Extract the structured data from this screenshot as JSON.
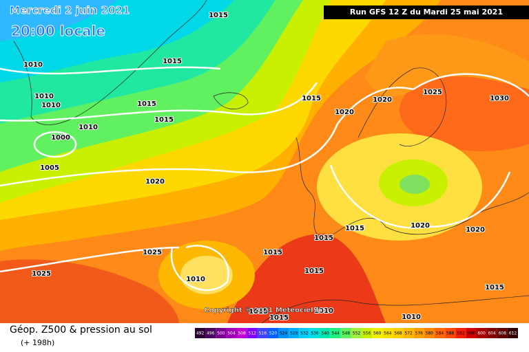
{
  "header": {
    "date": "Mercredi 2 juin 2021",
    "time": "20:00 locale",
    "run": "Run GFS 12 Z du Mardi 25 mai 2021",
    "copyright": "Copyright © 2021 Meteociel.fr"
  },
  "footer": {
    "title": "Géop. Z500 & pression au sol",
    "lead": "(+ 198h)"
  },
  "isobar_labels": [
    1015,
    1010,
    1015,
    1010,
    1010,
    1015,
    1010,
    1015,
    1015,
    1020,
    1020,
    1025,
    1030,
    1000,
    1005,
    1020,
    1015,
    1015,
    1020,
    1020,
    1025,
    1015,
    1025,
    1010,
    1015,
    1015,
    1015,
    1010,
    1010,
    1015
  ],
  "legend": {
    "levels": [
      492,
      496,
      500,
      504,
      508,
      512,
      516,
      520,
      524,
      528,
      532,
      536,
      540,
      544,
      548,
      552,
      556,
      560,
      564,
      568,
      572,
      576,
      580,
      584,
      588,
      592,
      596,
      600,
      604,
      608,
      612
    ],
    "colors": [
      "#2a0030",
      "#4a0060",
      "#7a0090",
      "#a000b8",
      "#c000d0",
      "#8000ff",
      "#4040ff",
      "#0060ff",
      "#0090ff",
      "#00b0ff",
      "#00d0ff",
      "#00e0e0",
      "#00e8b0",
      "#20f080",
      "#60f060",
      "#a0f040",
      "#c8f000",
      "#f0f000",
      "#f8e000",
      "#ffd000",
      "#ffb800",
      "#ffa000",
      "#ff8800",
      "#ff6800",
      "#ff4800",
      "#f02000",
      "#d00000",
      "#a80000",
      "#800000",
      "#600000",
      "#300000"
    ]
  }
}
